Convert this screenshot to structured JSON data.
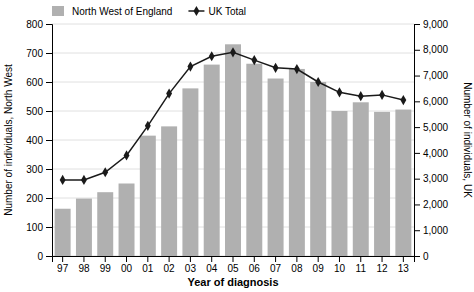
{
  "chart_data": {
    "type": "bar",
    "xlabel": "Year of diagnosis",
    "ylabel": "Number of individuals, North West",
    "y2label": "Number of individuals, UK",
    "categories": [
      "97",
      "98",
      "99",
      "00",
      "01",
      "02",
      "03",
      "04",
      "05",
      "06",
      "07",
      "08",
      "09",
      "10",
      "11",
      "12",
      "13"
    ],
    "series": [
      {
        "name": "North West of England",
        "type": "bar",
        "color": "#b0b0b0",
        "values": [
          163,
          198,
          220,
          250,
          415,
          447,
          578,
          660,
          730,
          663,
          612,
          645,
          600,
          500,
          530,
          497,
          505
        ]
      },
      {
        "name": "UK Total",
        "type": "line",
        "color": "#1a1a1a",
        "marker": "diamond",
        "axis": "y2",
        "values": [
          2950,
          2950,
          3250,
          3900,
          5050,
          6300,
          7350,
          7750,
          7900,
          7600,
          7300,
          7250,
          6750,
          6350,
          6200,
          6250,
          6050
        ]
      }
    ],
    "ylim": [
      0,
      800
    ],
    "yticks": [
      0,
      100,
      200,
      300,
      400,
      500,
      600,
      700,
      800
    ],
    "y2lim": [
      0,
      9000
    ],
    "y2ticks": [
      0,
      {
        "value": 1000,
        "label": "1,000"
      },
      {
        "value": 2000,
        "label": "2,000"
      },
      {
        "value": 3000,
        "label": "3,000"
      },
      {
        "value": 4000,
        "label": "4,000"
      },
      {
        "value": 5000,
        "label": "5,000"
      },
      {
        "value": 6000,
        "label": "6,000"
      },
      {
        "value": 7000,
        "label": "7,000"
      },
      {
        "value": 8000,
        "label": "8,000"
      },
      {
        "value": 9000,
        "label": "9,000"
      }
    ],
    "grid": true,
    "legend": "upper left"
  }
}
